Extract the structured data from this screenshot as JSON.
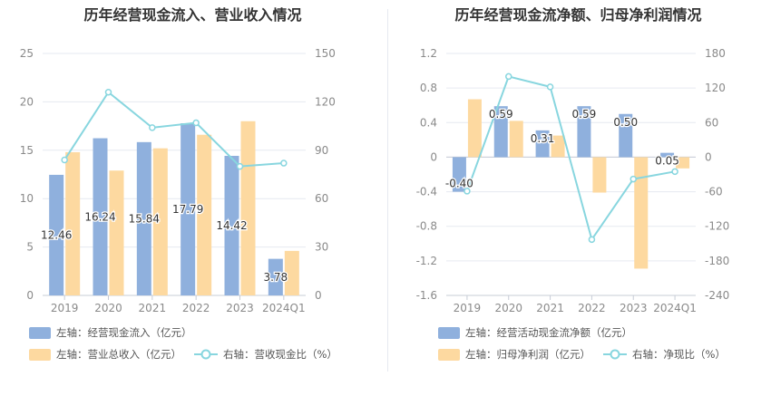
{
  "colors": {
    "bar_primary": "#8fb0dd",
    "bar_secondary": "#fdd9a0",
    "line": "#88d6df",
    "grid": "#e6e9f0",
    "axis_text": "#8a8a8a",
    "title": "#333333"
  },
  "chart_data": [
    {
      "type": "bar",
      "title": "历年经营现金流入、营业收入情况",
      "categories": [
        "2019",
        "2020",
        "2021",
        "2022",
        "2023",
        "2024Q1"
      ],
      "y_left": {
        "ylim": [
          0,
          25
        ],
        "ticks": [
          0,
          5,
          10,
          15,
          20,
          25
        ]
      },
      "y_right": {
        "ylim": [
          0,
          150
        ],
        "ticks": [
          0,
          30,
          60,
          90,
          120,
          150
        ]
      },
      "grid": true,
      "legend_position": "bottom",
      "series": [
        {
          "name": "左轴：经营现金流入（亿元）",
          "type": "bar",
          "axis": "left",
          "values": [
            12.46,
            16.24,
            15.84,
            17.79,
            14.42,
            3.78
          ],
          "labels": [
            "12.46",
            "16.24",
            "15.84",
            "17.79",
            "14.42",
            "3.78"
          ]
        },
        {
          "name": "左轴：营业总收入（亿元）",
          "type": "bar",
          "axis": "left",
          "values": [
            14.8,
            12.9,
            15.2,
            16.6,
            18.0,
            4.6
          ]
        },
        {
          "name": "右轴：营收现金比（%）",
          "type": "line",
          "axis": "right",
          "values": [
            84,
            126,
            104,
            107,
            80,
            82
          ]
        }
      ]
    },
    {
      "type": "bar",
      "title": "历年经营现金流净额、归母净利润情况",
      "categories": [
        "2019",
        "2020",
        "2021",
        "2022",
        "2023",
        "2024Q1"
      ],
      "y_left": {
        "ylim": [
          -1.6,
          1.2
        ],
        "ticks": [
          -1.6,
          -1.2,
          -0.8,
          -0.4,
          0,
          0.4,
          0.8,
          1.2
        ],
        "tick_labels": [
          "-1.6",
          "-1.2",
          "-0.8",
          "-0.4",
          "0",
          "0.4",
          "0.8",
          "1.2"
        ]
      },
      "y_right": {
        "ylim": [
          -240,
          180
        ],
        "ticks": [
          -240,
          -180,
          -120,
          -60,
          0,
          60,
          120,
          180
        ]
      },
      "grid": true,
      "legend_position": "bottom",
      "series": [
        {
          "name": "左轴：经营活动现金流净额（亿元）",
          "type": "bar",
          "axis": "left",
          "values": [
            -0.4,
            0.59,
            0.31,
            0.59,
            0.5,
            0.05
          ],
          "labels": [
            "-0.40",
            "0.59",
            "0.31",
            "0.59",
            "0.50",
            "0.05"
          ]
        },
        {
          "name": "左轴：归母净利润（亿元）",
          "type": "bar",
          "axis": "left",
          "values": [
            0.67,
            0.42,
            0.25,
            -0.41,
            -1.29,
            -0.13
          ]
        },
        {
          "name": "右轴：净现比（%）",
          "type": "line",
          "axis": "right",
          "values": [
            -59,
            140,
            122,
            -143,
            -38,
            -25
          ]
        }
      ]
    }
  ]
}
